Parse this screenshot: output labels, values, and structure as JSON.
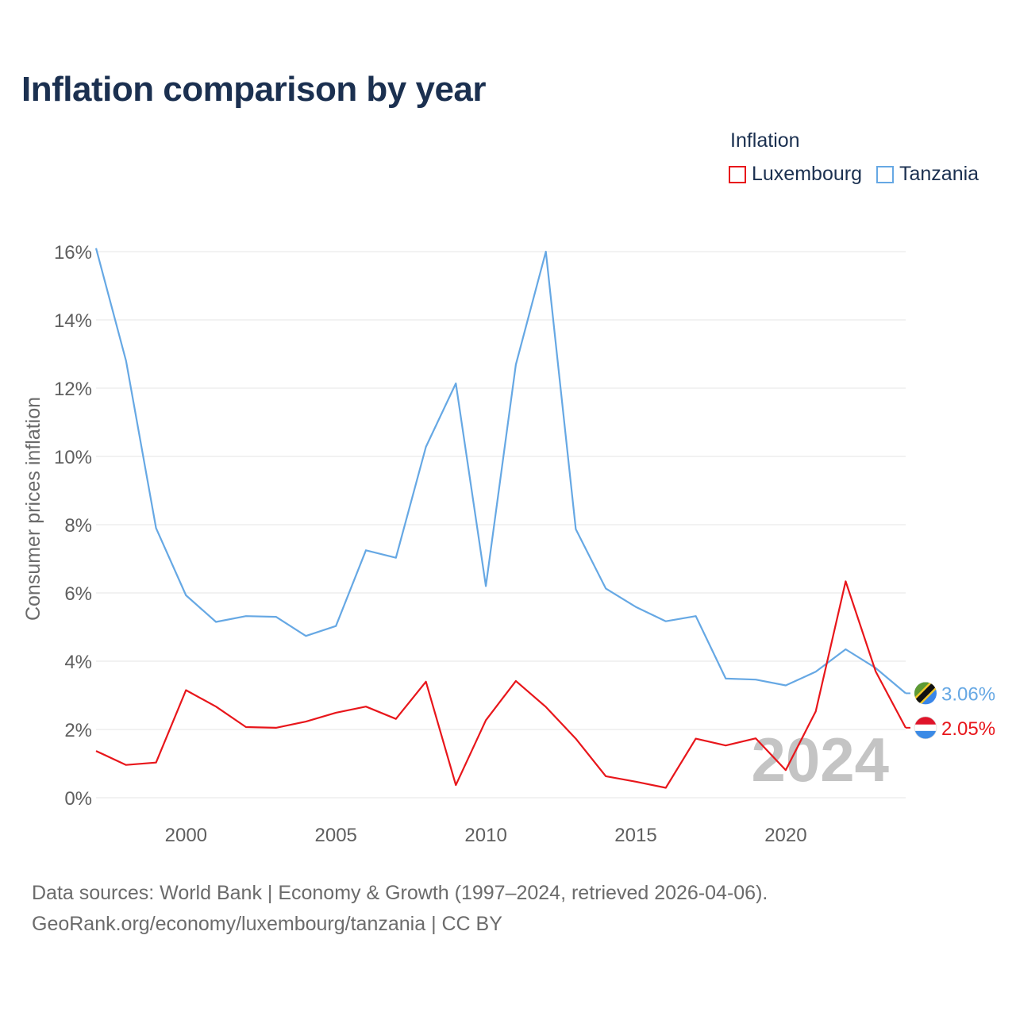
{
  "title": "Inflation comparison by year",
  "legend": {
    "title": "Inflation",
    "items": [
      {
        "label": "Luxembourg",
        "color": "#e8161b"
      },
      {
        "label": "Tanzania",
        "color": "#66a8e4"
      }
    ]
  },
  "footer": {
    "line1": "Data sources: World Bank | Economy & Growth (1997–2024, retrieved 2026-04-06).",
    "line2": "GeoRank.org/economy/luxembourg/tanzania | CC BY"
  },
  "chart_data": {
    "type": "line",
    "ylabel": "Consumer prices inflation",
    "xlabel": "",
    "xlim": [
      1997,
      2024
    ],
    "ylim": [
      0,
      16
    ],
    "x_ticks": [
      2000,
      2005,
      2010,
      2015,
      2020
    ],
    "y_ticks": [
      {
        "value": 0,
        "label": "0%"
      },
      {
        "value": 2,
        "label": "2%"
      },
      {
        "value": 4,
        "label": "4%"
      },
      {
        "value": 6,
        "label": "6%"
      },
      {
        "value": 8,
        "label": "8%"
      },
      {
        "value": 10,
        "label": "10%"
      },
      {
        "value": 12,
        "label": "12%"
      },
      {
        "value": 14,
        "label": "14%"
      },
      {
        "value": 16,
        "label": "16%"
      }
    ],
    "grid": true,
    "year_watermark": "2024",
    "x": [
      1997,
      1998,
      1999,
      2000,
      2001,
      2002,
      2003,
      2004,
      2005,
      2006,
      2007,
      2008,
      2009,
      2010,
      2011,
      2012,
      2013,
      2014,
      2015,
      2016,
      2017,
      2018,
      2019,
      2020,
      2021,
      2022,
      2023,
      2024
    ],
    "series": [
      {
        "name": "Tanzania",
        "color": "#66a8e4",
        "end_label": "3.06%",
        "flag": "tanzania-flag-icon",
        "values": [
          16.1,
          12.8,
          7.9,
          5.93,
          5.15,
          5.32,
          5.3,
          4.74,
          5.03,
          7.25,
          7.03,
          10.28,
          12.14,
          6.2,
          12.69,
          16.0,
          7.87,
          6.13,
          5.59,
          5.17,
          5.32,
          3.49,
          3.46,
          3.29,
          3.69,
          4.35,
          3.8,
          3.06
        ]
      },
      {
        "name": "Luxembourg",
        "color": "#e8161b",
        "end_label": "2.05%",
        "flag": "luxembourg-flag-icon",
        "values": [
          1.37,
          0.96,
          1.03,
          3.15,
          2.67,
          2.07,
          2.05,
          2.23,
          2.49,
          2.67,
          2.31,
          3.4,
          0.37,
          2.27,
          3.42,
          2.66,
          1.73,
          0.63,
          0.47,
          0.29,
          1.73,
          1.53,
          1.74,
          0.81,
          2.53,
          6.34,
          3.7,
          2.05
        ]
      }
    ]
  }
}
